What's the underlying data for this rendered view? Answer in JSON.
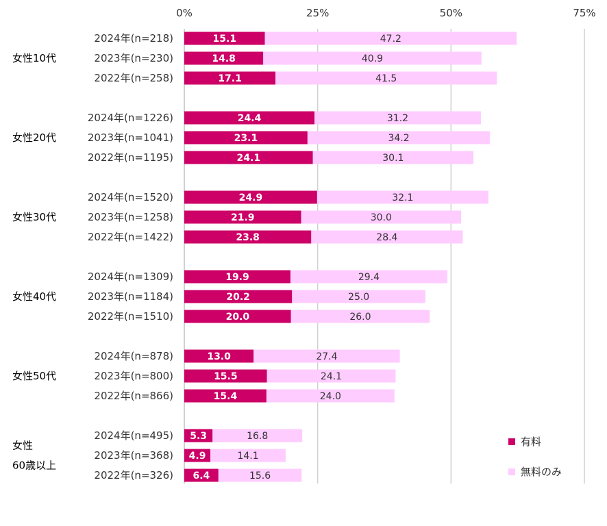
{
  "colors": {
    "paid": "#CC0066",
    "free_only": "#FFCCFF",
    "grid": "#D0D0D0",
    "axis": "#C0C0C0"
  },
  "chart_data": {
    "type": "bar",
    "orientation": "horizontal",
    "stacked": true,
    "xlim": [
      0,
      75
    ],
    "xticks": [
      "0%",
      "25%",
      "50%",
      "75%"
    ],
    "grid": true,
    "legend_position": "bottom-right",
    "legend": [
      "有料",
      "無料のみ"
    ],
    "groups": [
      {
        "label": [
          "女性10代"
        ],
        "rows": [
          {
            "label": "2024年(n=218)",
            "paid": 15.1,
            "free": 47.2
          },
          {
            "label": "2023年(n=230)",
            "paid": 14.8,
            "free": 40.9
          },
          {
            "label": "2022年(n=258)",
            "paid": 17.1,
            "free": 41.5
          }
        ]
      },
      {
        "label": [
          "女性20代"
        ],
        "rows": [
          {
            "label": "2024年(n=1226)",
            "paid": 24.4,
            "free": 31.2
          },
          {
            "label": "2023年(n=1041)",
            "paid": 23.1,
            "free": 34.2
          },
          {
            "label": "2022年(n=1195)",
            "paid": 24.1,
            "free": 30.1
          }
        ]
      },
      {
        "label": [
          "女性30代"
        ],
        "rows": [
          {
            "label": "2024年(n=1520)",
            "paid": 24.9,
            "free": 32.1
          },
          {
            "label": "2023年(n=1258)",
            "paid": 21.9,
            "free": 30.0
          },
          {
            "label": "2022年(n=1422)",
            "paid": 23.8,
            "free": 28.4
          }
        ]
      },
      {
        "label": [
          "女性40代"
        ],
        "rows": [
          {
            "label": "2024年(n=1309)",
            "paid": 19.9,
            "free": 29.4
          },
          {
            "label": "2023年(n=1184)",
            "paid": 20.2,
            "free": 25.0
          },
          {
            "label": "2022年(n=1510)",
            "paid": 20.0,
            "free": 26.0
          }
        ]
      },
      {
        "label": [
          "女性50代"
        ],
        "rows": [
          {
            "label": "2024年(n=878)",
            "paid": 13.0,
            "free": 27.4
          },
          {
            "label": "2023年(n=800)",
            "paid": 15.5,
            "free": 24.1
          },
          {
            "label": "2022年(n=866)",
            "paid": 15.4,
            "free": 24.0
          }
        ]
      },
      {
        "label": [
          "女性",
          "60歳以上"
        ],
        "rows": [
          {
            "label": "2024年(n=495)",
            "paid": 5.3,
            "free": 16.8
          },
          {
            "label": "2023年(n=368)",
            "paid": 4.9,
            "free": 14.1
          },
          {
            "label": "2022年(n=326)",
            "paid": 6.4,
            "free": 15.6
          }
        ]
      }
    ]
  }
}
